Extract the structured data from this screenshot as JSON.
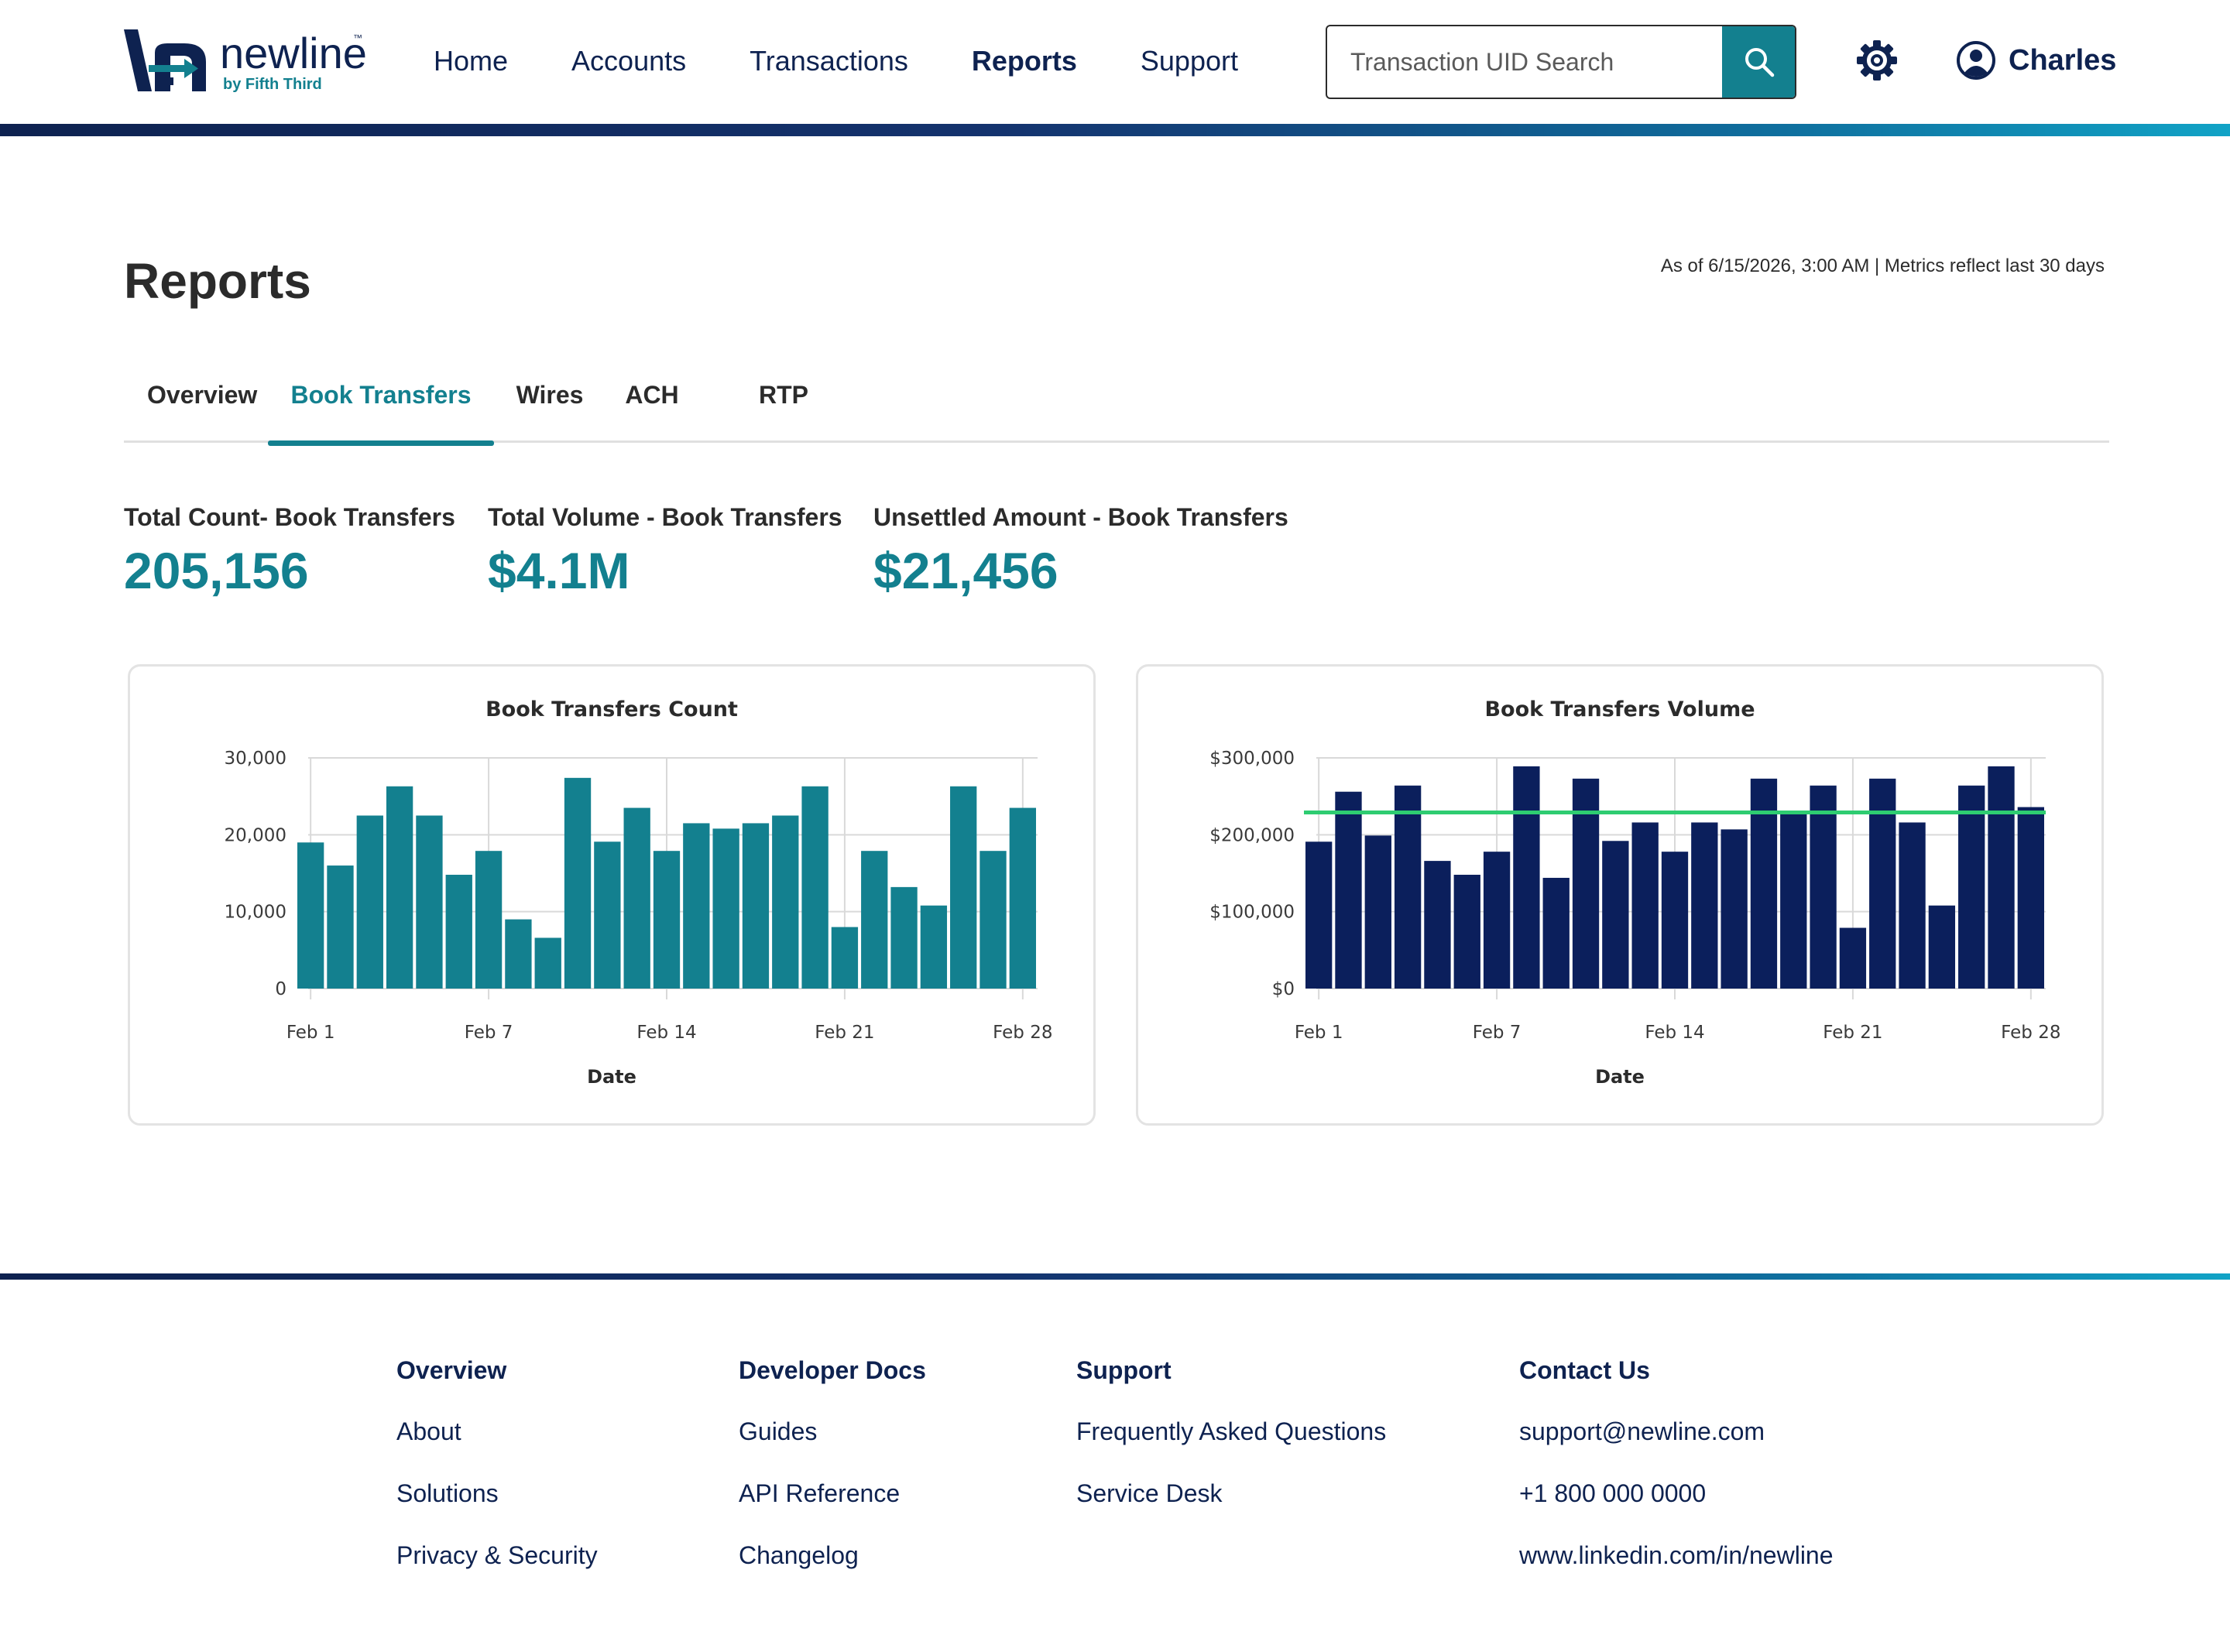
{
  "header": {
    "logo_word": "newline",
    "logo_tm": "™",
    "logo_sub": "by Fifth Third",
    "nav": [
      "Home",
      "Accounts",
      "Transactions",
      "Reports",
      "Support"
    ],
    "active_nav": "Reports",
    "search_placeholder": "Transaction UID Search",
    "user_name": "Charles",
    "icons": {
      "search": "search-icon",
      "settings": "gear-icon",
      "user": "user-circle-icon"
    }
  },
  "page": {
    "title": "Reports",
    "as_of": "As of 6/15/2026, 3:00 AM | Metrics reflect last 30 days"
  },
  "tabs": [
    {
      "label": "Overview"
    },
    {
      "label": "Book Transfers"
    },
    {
      "label": "Wires"
    },
    {
      "label": "ACH"
    },
    {
      "label": "RTP"
    }
  ],
  "active_tab": "Book Transfers",
  "metrics": [
    {
      "label": "Total Count- Book Transfers",
      "value": "205,156"
    },
    {
      "label": "Total Volume - Book Transfers",
      "value": "$4.1M"
    },
    {
      "label": "Unsettled Amount - Book Transfers",
      "value": "$21,456"
    }
  ],
  "colors": {
    "teal": "#13808f",
    "navy": "#0e2250",
    "bar_navy": "#0b1f5c",
    "line_green": "#2ecc71"
  },
  "chart_data": [
    {
      "type": "bar",
      "title": "Book Transfers Count",
      "xlabel": "Date",
      "ylabel": "",
      "ylim": [
        0,
        30000
      ],
      "yticks": [
        0,
        10000,
        20000,
        30000
      ],
      "ytick_labels": [
        "0",
        "10,000",
        "20,000",
        "30,000"
      ],
      "xtick_labels": [
        "Feb 1",
        "Feb 7",
        "Feb 14",
        "Feb 21",
        "Feb 28"
      ],
      "xtick_index": [
        0,
        6,
        12,
        18,
        24
      ],
      "values": [
        19000,
        16000,
        22500,
        26300,
        22500,
        14800,
        17900,
        9000,
        6600,
        27400,
        19100,
        23500,
        17900,
        21500,
        20800,
        21500,
        22500,
        26300,
        8000,
        17900,
        13200,
        10800,
        26300,
        17900,
        23500
      ],
      "color": "#13808f",
      "grid": true
    },
    {
      "type": "bar",
      "title": "Book Transfers Volume",
      "xlabel": "Date",
      "ylabel": "",
      "ylim": [
        0,
        300000
      ],
      "yticks": [
        0,
        100000,
        200000,
        300000
      ],
      "ytick_labels": [
        "$0",
        "$100,000",
        "$200,000",
        "$300,000"
      ],
      "xtick_labels": [
        "Feb 1",
        "Feb 7",
        "Feb 14",
        "Feb 21",
        "Feb 28"
      ],
      "xtick_index": [
        0,
        6,
        12,
        18,
        24
      ],
      "values": [
        191000,
        256000,
        199000,
        264000,
        166000,
        148000,
        178000,
        289000,
        144000,
        273000,
        192000,
        216000,
        178000,
        216000,
        207000,
        273000,
        228000,
        264000,
        79000,
        273000,
        216000,
        108000,
        264000,
        289000,
        236000
      ],
      "reference_line": 229000,
      "color": "#0b1f5c",
      "line_color": "#2ecc71",
      "grid": true
    }
  ],
  "footer": {
    "columns": [
      {
        "head": "Overview",
        "links": [
          "About",
          "Solutions",
          "Privacy & Security"
        ]
      },
      {
        "head": "Developer Docs",
        "links": [
          "Guides",
          "API Reference",
          "Changelog"
        ]
      },
      {
        "head": "Support",
        "links": [
          "Frequently Asked Questions",
          "Service Desk"
        ]
      },
      {
        "head": "Contact Us",
        "links": [
          "support@newline.com",
          "+1 800 000 0000",
          "www.linkedin.com/in/newline"
        ]
      }
    ]
  }
}
